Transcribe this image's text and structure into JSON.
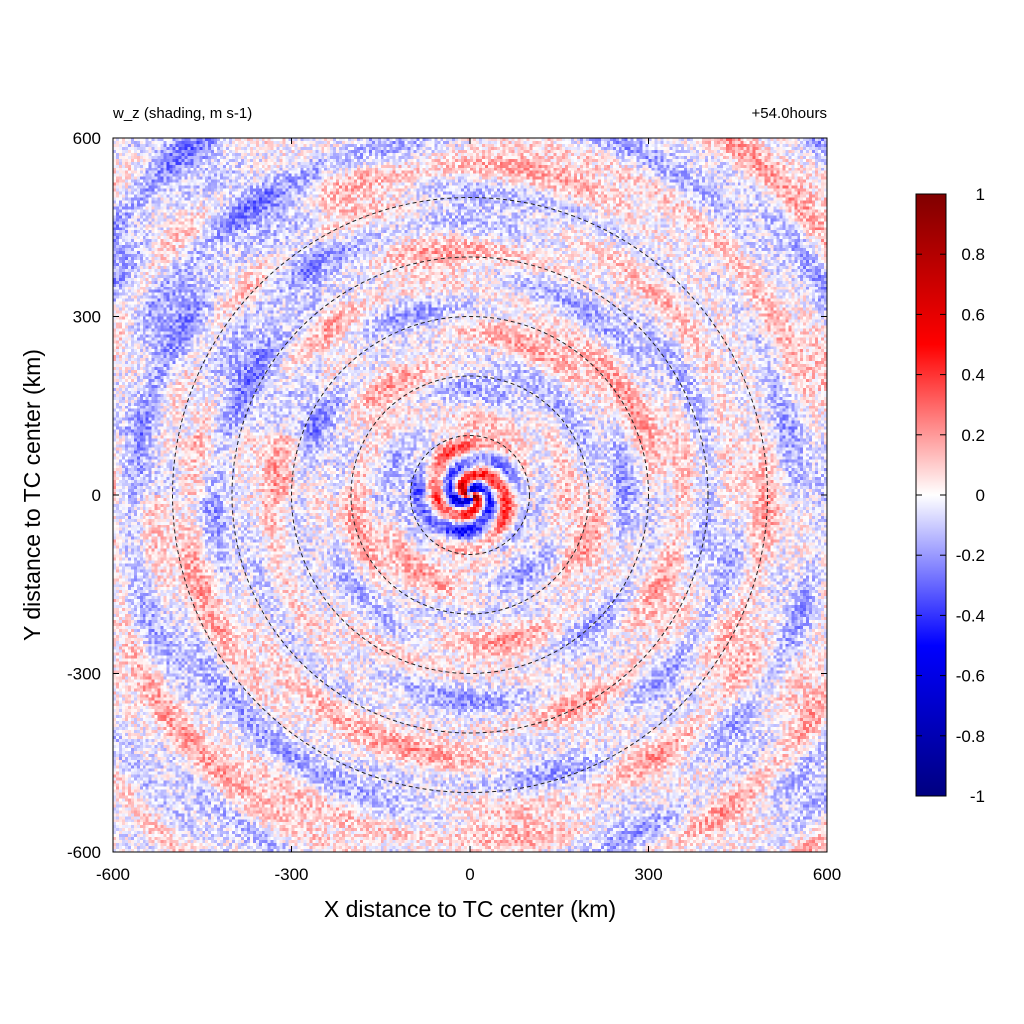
{
  "chart_data": {
    "type": "heatmap",
    "title_left": "w_z (shading, m s-1)",
    "title_right": "+54.0hours",
    "xlabel": "X distance to TC center (km)",
    "ylabel": "Y distance to TC center (km)",
    "xlim": [
      -600,
      600
    ],
    "ylim": [
      -600,
      600
    ],
    "xticks": [
      "-600",
      "-300",
      "0",
      "300",
      "600"
    ],
    "yticks": [
      "-600",
      "-300",
      "0",
      "300",
      "600"
    ],
    "xtick_values": [
      -600,
      -300,
      0,
      300,
      600
    ],
    "ytick_values": [
      -600,
      -300,
      0,
      300,
      600
    ],
    "range_rings_km": [
      100,
      200,
      300,
      400,
      500
    ],
    "range_ring_style": "black dashed",
    "colorbar": {
      "min": -1,
      "max": 1,
      "ticks": [
        "1",
        "0.8",
        "0.6",
        "0.4",
        "0.2",
        "0",
        "-0.2",
        "-0.4",
        "-0.6",
        "-0.8",
        "-1"
      ],
      "tick_values": [
        1,
        0.8,
        0.6,
        0.4,
        0.2,
        0,
        -0.2,
        -0.4,
        -0.6,
        -0.8,
        -1
      ],
      "colors": {
        "low": "#000080",
        "mid_low": "#0000ff",
        "zero": "#ffffff",
        "mid_high": "#ff0000",
        "high": "#800000"
      }
    },
    "field_description": "noisy vertical velocity field, strongest values (about -1 to +1) in the inner core near the center, spiral bands of weak positive and negative values outward",
    "grid": false
  }
}
